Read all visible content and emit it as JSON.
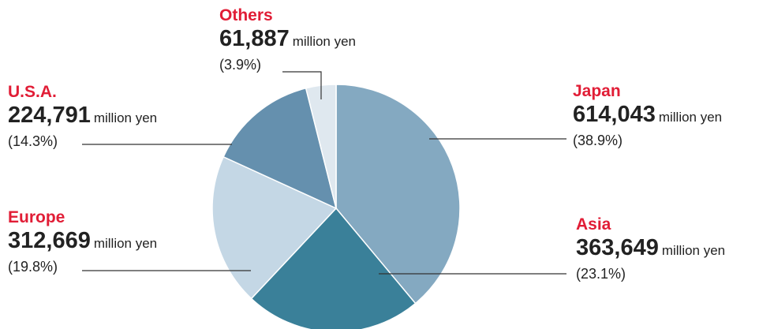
{
  "chart_data": {
    "type": "pie",
    "title": "",
    "unit": "million yen",
    "categories": [
      "Japan",
      "Asia",
      "Europe",
      "U.S.A.",
      "Others"
    ],
    "values": [
      614043,
      363649,
      312669,
      224791,
      61887
    ],
    "value_labels": [
      "614,043",
      "363,649",
      "312,669",
      "224,791",
      "61,887"
    ],
    "percent_labels": [
      "(38.9%)",
      "(23.1%)",
      "(19.8%)",
      "(14.3%)",
      "(3.9%)"
    ],
    "start_angle_deg": 0,
    "direction": "clockwise",
    "legend": "none",
    "colors": [
      "#84a9c1",
      "#3a8099",
      "#c4d7e5",
      "#6590ae",
      "#dfe8ef"
    ],
    "label_color": "#e11d36"
  }
}
